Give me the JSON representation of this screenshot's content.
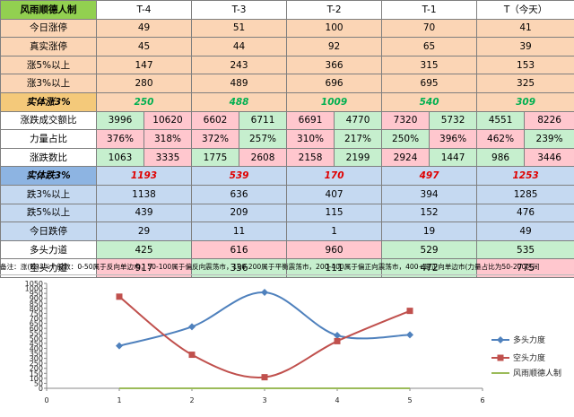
{
  "table": {
    "corner": "风雨顺德人制",
    "headers": [
      "T-4",
      "T-3",
      "T-2",
      "T-1",
      "T（今天）"
    ],
    "rows": {
      "today_limit_up": {
        "label": "今日涨停",
        "values": [
          "49",
          "51",
          "100",
          "70",
          "41"
        ]
      },
      "real_limit_up": {
        "label": "真实涨停",
        "values": [
          "45",
          "44",
          "92",
          "65",
          "39"
        ]
      },
      "up5": {
        "label": "涨5%以上",
        "values": [
          "147",
          "243",
          "366",
          "315",
          "153"
        ]
      },
      "up3": {
        "label": "涨3%以上",
        "values": [
          "280",
          "489",
          "696",
          "695",
          "325"
        ]
      },
      "real_up3": {
        "label": "实体涨3%",
        "values": [
          "250",
          "488",
          "1009",
          "540",
          "309"
        ]
      },
      "volume_ratio": {
        "label": "涨跌成交额比",
        "values": [
          "3996",
          "10620",
          "6602",
          "6711",
          "6691",
          "4770",
          "7320",
          "5732",
          "4551",
          "8226"
        ]
      },
      "force_ratio": {
        "label": "力量占比",
        "values": [
          "376%",
          "318%",
          "372%",
          "257%",
          "310%",
          "217%",
          "250%",
          "396%",
          "462%",
          "239%"
        ]
      },
      "count_ratio": {
        "label": "涨跌数比",
        "values": [
          "1063",
          "3335",
          "1775",
          "2608",
          "2158",
          "2199",
          "2924",
          "1447",
          "986",
          "3446"
        ]
      },
      "real_down3": {
        "label": "实体跌3%",
        "values": [
          "1193",
          "539",
          "170",
          "497",
          "1253"
        ]
      },
      "down3": {
        "label": "跌3%以上",
        "values": [
          "1138",
          "636",
          "407",
          "394",
          "1285"
        ]
      },
      "down5": {
        "label": "跌5%以上",
        "values": [
          "439",
          "209",
          "115",
          "152",
          "476"
        ]
      },
      "limit_down": {
        "label": "今日跌停",
        "values": [
          "29",
          "11",
          "1",
          "19",
          "49"
        ]
      },
      "bull_force": {
        "label": "多头力道",
        "values": [
          "425",
          "616",
          "960",
          "529",
          "535"
        ]
      },
      "bear_force": {
        "label": "空头力道",
        "values": [
          "917",
          "336",
          "111",
          "472",
          "775"
        ]
      }
    },
    "note": "备注：涨(跌)3%个股数：0-50属于反向单边市，50-100属于偏反向震荡市，100-200属于平衡震荡市，200-400属于偏正向震荡市，400+是正向单边市(力量占比为50-200区间"
  },
  "colors": {
    "bull": "#4f81bd",
    "bear": "#c0504d",
    "third": "#9bbb59"
  },
  "chart_data": {
    "type": "line",
    "x": [
      1,
      2,
      3,
      4,
      5
    ],
    "xlim": [
      0,
      6
    ],
    "ylim": [
      0,
      1050
    ],
    "y_ticks": [
      "0",
      "50",
      "100",
      "150",
      "200",
      "250",
      "300",
      "350",
      "400",
      "450",
      "500",
      "550",
      "600",
      "650",
      "700",
      "750",
      "800",
      "850",
      "900",
      "950",
      "1000",
      "1050"
    ],
    "x_ticks": [
      "0",
      "1",
      "2",
      "3",
      "4",
      "5",
      "6"
    ],
    "series": [
      {
        "name": "多头力度",
        "values": [
          425,
          616,
          960,
          529,
          535
        ]
      },
      {
        "name": "空头力度",
        "values": [
          917,
          336,
          111,
          472,
          775
        ]
      },
      {
        "name": "风雨顺德人制",
        "values": [
          0,
          0,
          0,
          0,
          0
        ]
      }
    ],
    "legend": "right",
    "grid": false
  }
}
